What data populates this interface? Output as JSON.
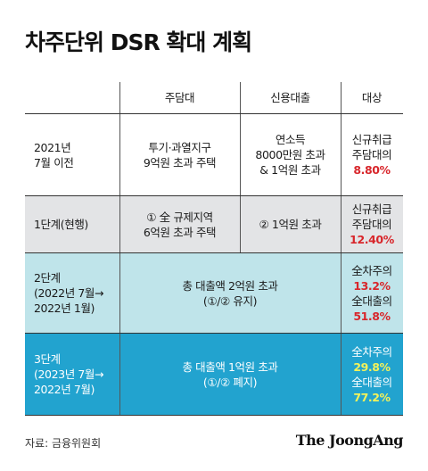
{
  "title": "차주단위 DSR 확대 계획",
  "table": {
    "headers": [
      "",
      "주담대",
      "신용대출",
      "대상"
    ],
    "rows": [
      {
        "label": [
          "2021년",
          "7월 이전"
        ],
        "mortgage": [
          "투기·과열지구",
          "9억원 초과 주택"
        ],
        "credit": [
          "연소득",
          "8000만원 초과",
          "& 1억원 초과"
        ],
        "target": [
          "신규취급",
          "주담대의"
        ],
        "target_value": "8.80%"
      },
      {
        "label": [
          "1단계(현행)"
        ],
        "mortgage": [
          "① 全 규제지역",
          "6억원 초과 주택"
        ],
        "credit": [
          "② 1억원 초과"
        ],
        "target": [
          "신규취급",
          "주담대의"
        ],
        "target_value": "12.40%"
      },
      {
        "label": [
          "2단계",
          "(2022년 7월→",
          "2022년 1월)"
        ],
        "merged": [
          "총 대출액 2억원 초과",
          "(①/② 유지)"
        ],
        "target_a": "全차주의",
        "target_a_value": "13.2%",
        "target_b": "全대출의",
        "target_b_value": "51.8%"
      },
      {
        "label": [
          "3단계",
          "(2023년 7월→",
          "2022년 7월)"
        ],
        "merged": [
          "총 대출액 1억원 초과",
          "(①/② 폐지)"
        ],
        "target_a": "全차주의",
        "target_a_value": "29.8%",
        "target_b": "全대출의",
        "target_b_value": "77.2%"
      }
    ]
  },
  "source": "자료: 금융위원회",
  "publisher": "The JoongAng",
  "colors": {
    "row_gray": "#e3e4e6",
    "row_light_blue": "#bfe4ea",
    "row_blue": "#22a3cf",
    "highlight_red": "#d8262b",
    "highlight_yellow": "#f3f25a"
  }
}
